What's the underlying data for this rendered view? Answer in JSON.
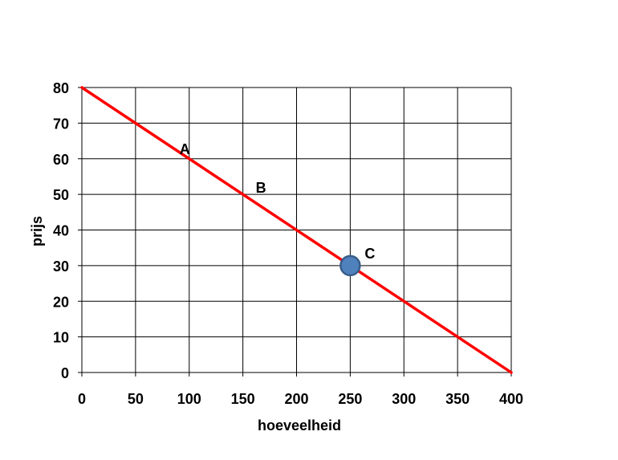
{
  "chart_data": {
    "type": "line",
    "xlabel": "hoeveelheid",
    "ylabel": "prijs",
    "xlim": [
      0,
      400
    ],
    "ylim": [
      0,
      80
    ],
    "x_ticks": [
      0,
      50,
      100,
      150,
      200,
      250,
      300,
      350,
      400
    ],
    "y_ticks": [
      0,
      10,
      20,
      30,
      40,
      50,
      60,
      70,
      80
    ],
    "grid": true,
    "series": [
      {
        "color": "#ff0000",
        "points": [
          [
            0,
            80
          ],
          [
            400,
            0
          ]
        ]
      }
    ],
    "annotations": [
      {
        "label": "A",
        "x": 100,
        "y": 60
      },
      {
        "label": "B",
        "x": 150,
        "y": 50
      },
      {
        "label": "C",
        "x": 250,
        "y": 30
      }
    ],
    "markers": [
      {
        "x": 250,
        "y": 30,
        "color": "#4f81bd",
        "edge": "#385d8a"
      }
    ]
  }
}
